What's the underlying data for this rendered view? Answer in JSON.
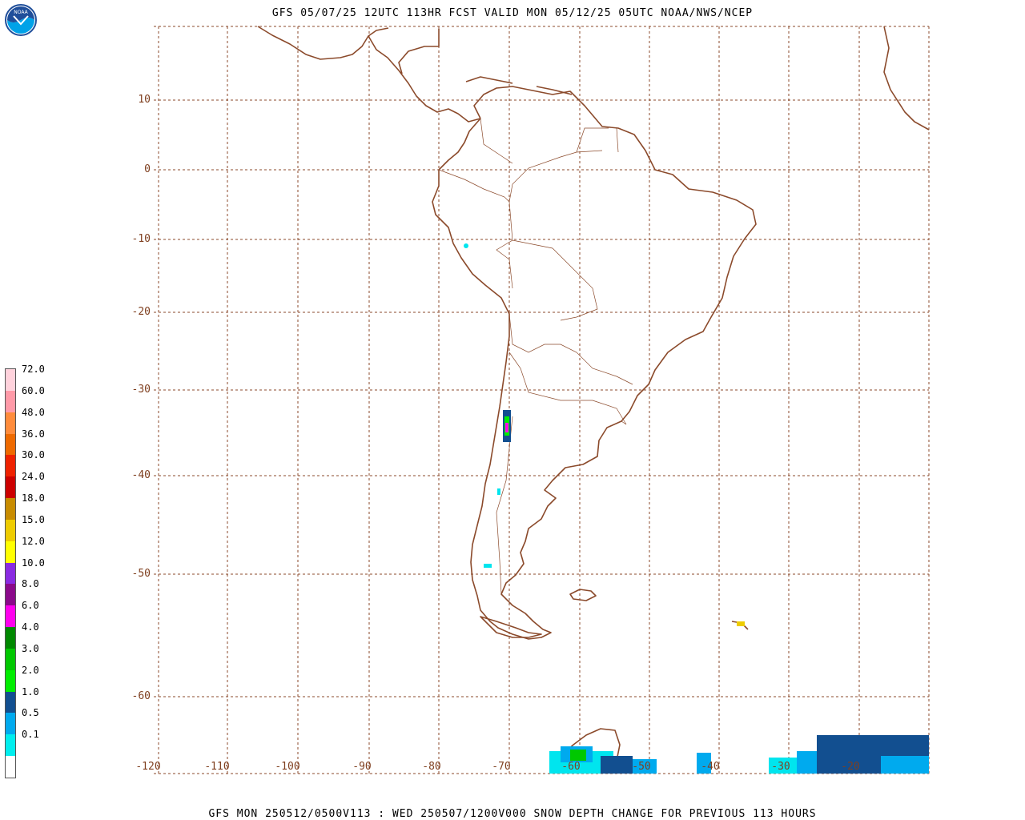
{
  "header": {
    "title": "GFS 05/07/25 12UTC 113HR FCST VALID MON 05/12/25 05UTC NOAA/NWS/NCEP",
    "logo_text": "NOAA"
  },
  "footer": {
    "title": "GFS MON 250512/0500V113 : WED 250507/1200V000 SNOW DEPTH CHANGE FOR PREVIOUS 113 HOURS"
  },
  "colors": {
    "coast": "#8b4a2b",
    "grid": "#8b4a2b",
    "label": "#7f3f1f",
    "snow_light": "#00e5ee",
    "snow_mid": "#00a0ee",
    "snow_dark": "#124f90"
  },
  "map": {
    "lat_labels": [
      "10",
      "0",
      "-10",
      "-20",
      "-30",
      "-40",
      "-50",
      "-60"
    ],
    "lon_labels": [
      "-120",
      "-110",
      "-100",
      "-90",
      "-80",
      "-70",
      "-60",
      "-50",
      "-40",
      "-30",
      "-20"
    ]
  },
  "legend": {
    "items": [
      {
        "label": "",
        "color": "#ffffff"
      },
      {
        "label": "0.1",
        "color": "#00eeee"
      },
      {
        "label": "0.5",
        "color": "#00aaee"
      },
      {
        "label": "1.0",
        "color": "#124f90"
      },
      {
        "label": "2.0",
        "color": "#00ee00"
      },
      {
        "label": "3.0",
        "color": "#00c800"
      },
      {
        "label": "4.0",
        "color": "#008800"
      },
      {
        "label": "6.0",
        "color": "#ff00ee"
      },
      {
        "label": "8.0",
        "color": "#8b0a8b"
      },
      {
        "label": "10.0",
        "color": "#8a2be2"
      },
      {
        "label": "12.0",
        "color": "#ffff00"
      },
      {
        "label": "15.0",
        "color": "#eecc00"
      },
      {
        "label": "18.0",
        "color": "#c88c00"
      },
      {
        "label": "24.0",
        "color": "#cc0000"
      },
      {
        "label": "30.0",
        "color": "#ee2200"
      },
      {
        "label": "36.0",
        "color": "#ee6a00"
      },
      {
        "label": "48.0",
        "color": "#ff8c3c"
      },
      {
        "label": "60.0",
        "color": "#ff9aa8"
      },
      {
        "label": "72.0",
        "color": "#ffd2dc"
      }
    ]
  }
}
